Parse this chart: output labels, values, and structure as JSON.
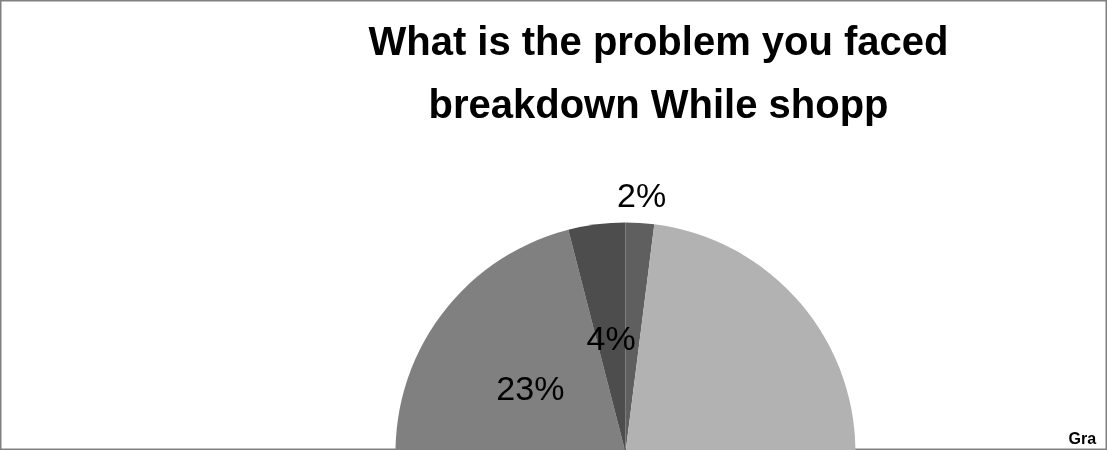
{
  "chart_data": {
    "type": "pie",
    "title": "What is the problem you faced\nbreakdown While shopp",
    "categories": [
      null,
      null,
      null,
      null
    ],
    "values": [
      2,
      71,
      23,
      4
    ],
    "colors": [
      "#5f5f5f",
      "#b2b2b2",
      "#808080",
      "#4d4d4d"
    ],
    "value_labels": [
      "2%",
      null,
      "23%",
      "4%"
    ],
    "annotations": [
      "Gra"
    ]
  }
}
